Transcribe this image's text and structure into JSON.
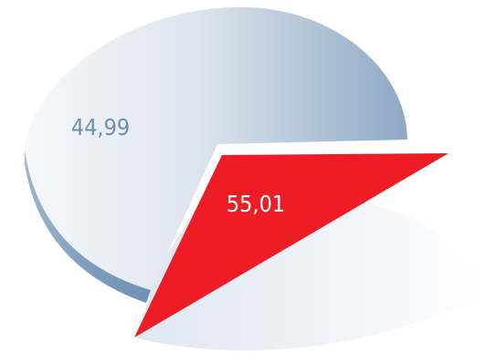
{
  "chart_data": {
    "type": "pie",
    "style": "3d-exploded",
    "slices": [
      {
        "label": "44,99",
        "value": 44.99,
        "color": "#7f9fbe"
      },
      {
        "label": "55,01",
        "value": 55.01,
        "color": "#ee1c25",
        "exploded": true
      }
    ],
    "label_colors": [
      "#6e8fae",
      "#ffffff"
    ]
  }
}
